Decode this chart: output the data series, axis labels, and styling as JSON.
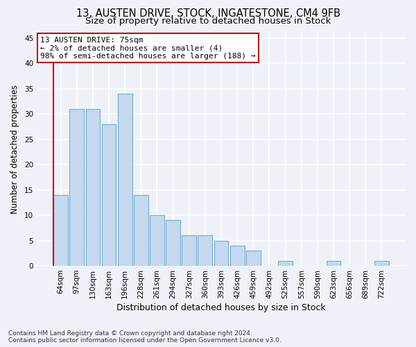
{
  "title1": "13, AUSTEN DRIVE, STOCK, INGATESTONE, CM4 9FB",
  "title2": "Size of property relative to detached houses in Stock",
  "xlabel": "Distribution of detached houses by size in Stock",
  "ylabel": "Number of detached properties",
  "categories": [
    "64sqm",
    "97sqm",
    "130sqm",
    "163sqm",
    "196sqm",
    "228sqm",
    "261sqm",
    "294sqm",
    "327sqm",
    "360sqm",
    "393sqm",
    "426sqm",
    "459sqm",
    "492sqm",
    "525sqm",
    "557sqm",
    "590sqm",
    "623sqm",
    "656sqm",
    "689sqm",
    "722sqm"
  ],
  "values": [
    14,
    31,
    31,
    28,
    34,
    14,
    10,
    9,
    6,
    6,
    5,
    4,
    3,
    0,
    1,
    0,
    0,
    1,
    0,
    0,
    1
  ],
  "bar_color": "#c5d8ed",
  "bar_edgecolor": "#6aaed6",
  "ylim": [
    0,
    46
  ],
  "yticks": [
    0,
    5,
    10,
    15,
    20,
    25,
    30,
    35,
    40,
    45
  ],
  "annotation_line1": "13 AUSTEN DRIVE: 75sqm",
  "annotation_line2": "← 2% of detached houses are smaller (4)",
  "annotation_line3": "98% of semi-detached houses are larger (188) →",
  "annotation_box_facecolor": "#ffffff",
  "annotation_box_edgecolor": "#cc0000",
  "red_line_color": "#cc0000",
  "footer_text": "Contains HM Land Registry data © Crown copyright and database right 2024.\nContains public sector information licensed under the Open Government Licence v3.0.",
  "bg_color": "#eef2f8",
  "grid_color": "#ffffff",
  "title1_fontsize": 10.5,
  "title2_fontsize": 9.5,
  "xlabel_fontsize": 9,
  "ylabel_fontsize": 8.5,
  "tick_fontsize": 7.5,
  "annotation_fontsize": 8,
  "footer_fontsize": 6.5
}
